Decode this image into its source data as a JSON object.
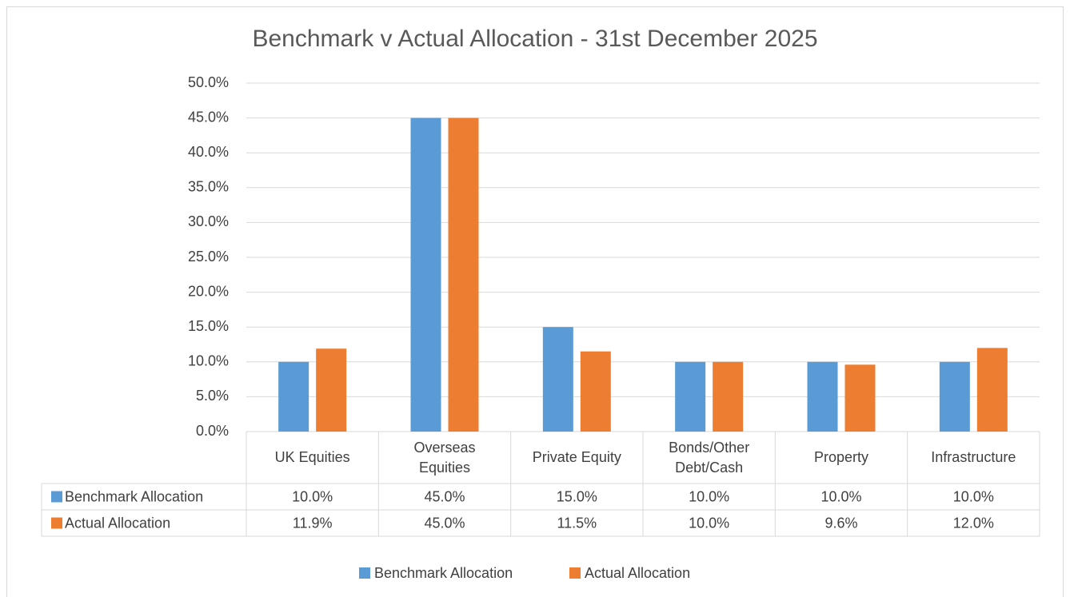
{
  "chart_data": {
    "type": "bar",
    "title": "Benchmark v Actual Allocation - 31st December 2025",
    "categories": [
      "UK Equities",
      "Overseas Equities",
      "Private Equity",
      "Bonds/Other Debt/Cash",
      "Property",
      "Infrastructure"
    ],
    "series": [
      {
        "name": "Benchmark Allocation",
        "color": "#5b9bd5",
        "values": [
          10.0,
          45.0,
          15.0,
          10.0,
          10.0,
          10.0
        ],
        "value_labels": [
          "10.0%",
          "45.0%",
          "15.0%",
          "10.0%",
          "10.0%",
          "10.0%"
        ]
      },
      {
        "name": "Actual Allocation",
        "color": "#ed7d31",
        "values": [
          11.9,
          45.0,
          11.5,
          10.0,
          9.6,
          12.0
        ],
        "value_labels": [
          "11.9%",
          "45.0%",
          "11.5%",
          "10.0%",
          "9.6%",
          "12.0%"
        ]
      }
    ],
    "ylim": [
      0,
      50
    ],
    "yticks": [
      {
        "value": 0,
        "label": "0.0%"
      },
      {
        "value": 5,
        "label": "5.0%"
      },
      {
        "value": 10,
        "label": "10.0%"
      },
      {
        "value": 15,
        "label": "15.0%"
      },
      {
        "value": 20,
        "label": "20.0%"
      },
      {
        "value": 25,
        "label": "25.0%"
      },
      {
        "value": 30,
        "label": "30.0%"
      },
      {
        "value": 35,
        "label": "35.0%"
      },
      {
        "value": 40,
        "label": "40.0%"
      },
      {
        "value": 45,
        "label": "45.0%"
      },
      {
        "value": 50,
        "label": "50.0%"
      }
    ],
    "grid": true,
    "legend": "bottom"
  }
}
